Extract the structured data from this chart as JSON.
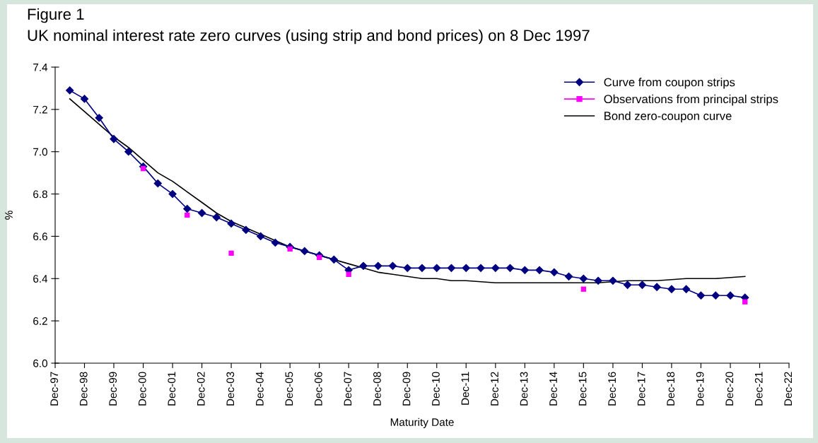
{
  "chart_data": {
    "type": "line",
    "title": "Figure 1",
    "subtitle": "UK nominal interest rate zero curves (using strip and bond prices) on 8 Dec 1997",
    "xlabel": "Maturity Date",
    "ylabel": "%",
    "series": [
      {
        "name": "Curve from coupon strips",
        "color": "#000080",
        "marker": "diamond",
        "line_style": "solid",
        "x": [
          "1998-06",
          "1998-12",
          "1999-06",
          "1999-12",
          "2000-06",
          "2000-12",
          "2001-06",
          "2001-12",
          "2002-06",
          "2002-12",
          "2003-06",
          "2003-12",
          "2004-06",
          "2004-12",
          "2005-06",
          "2005-12",
          "2006-06",
          "2006-12",
          "2007-06",
          "2007-12",
          "2008-06",
          "2008-12",
          "2009-06",
          "2009-12",
          "2010-06",
          "2010-12",
          "2011-06",
          "2011-12",
          "2012-06",
          "2012-12",
          "2013-06",
          "2013-12",
          "2014-06",
          "2014-12",
          "2015-06",
          "2015-12",
          "2016-06",
          "2016-12",
          "2017-06",
          "2017-12",
          "2018-06",
          "2018-12",
          "2019-06",
          "2019-12",
          "2020-06",
          "2020-12",
          "2021-06"
        ],
        "values": [
          7.29,
          7.25,
          7.16,
          7.06,
          7.0,
          6.93,
          6.85,
          6.8,
          6.73,
          6.71,
          6.69,
          6.66,
          6.63,
          6.6,
          6.57,
          6.55,
          6.53,
          6.51,
          6.49,
          6.44,
          6.46,
          6.46,
          6.46,
          6.45,
          6.45,
          6.45,
          6.45,
          6.45,
          6.45,
          6.45,
          6.45,
          6.44,
          6.44,
          6.43,
          6.41,
          6.4,
          6.39,
          6.39,
          6.37,
          6.37,
          6.36,
          6.35,
          6.35,
          6.32,
          6.32,
          6.32,
          6.31
        ]
      },
      {
        "name": "Observations from principal strips",
        "type": "scatter",
        "color": "#ff00ff",
        "marker": "square",
        "x": [
          "2000-12",
          "2002-06",
          "2003-12",
          "2005-12",
          "2006-12",
          "2007-12",
          "2015-12",
          "2021-06"
        ],
        "values": [
          6.92,
          6.7,
          6.52,
          6.54,
          6.5,
          6.42,
          6.35,
          6.29
        ]
      },
      {
        "name": "Bond zero-coupon curve",
        "color": "#000000",
        "marker": "none",
        "line_style": "solid",
        "x": [
          "1998-06",
          "1998-12",
          "1999-06",
          "1999-12",
          "2000-06",
          "2000-12",
          "2001-06",
          "2001-12",
          "2002-06",
          "2002-12",
          "2003-06",
          "2003-12",
          "2004-06",
          "2004-12",
          "2005-06",
          "2005-12",
          "2006-06",
          "2006-12",
          "2007-06",
          "2007-12",
          "2008-06",
          "2008-12",
          "2009-06",
          "2009-12",
          "2010-06",
          "2010-12",
          "2011-06",
          "2011-12",
          "2012-12",
          "2013-12",
          "2014-12",
          "2015-12",
          "2016-06",
          "2017-06",
          "2018-06",
          "2019-06",
          "2020-06",
          "2021-06"
        ],
        "values": [
          7.25,
          7.19,
          7.13,
          7.07,
          7.02,
          6.96,
          6.9,
          6.86,
          6.81,
          6.76,
          6.71,
          6.67,
          6.64,
          6.61,
          6.58,
          6.55,
          6.53,
          6.51,
          6.49,
          6.47,
          6.45,
          6.43,
          6.42,
          6.41,
          6.4,
          6.4,
          6.39,
          6.39,
          6.38,
          6.38,
          6.38,
          6.38,
          6.38,
          6.39,
          6.39,
          6.4,
          6.4,
          6.41
        ]
      }
    ],
    "xlim": [
      "1997-12",
      "2022-12"
    ],
    "xticks": [
      {
        "value": "1997-12",
        "label": "Dec-97"
      },
      {
        "value": "1998-12",
        "label": "Dec-98"
      },
      {
        "value": "1999-12",
        "label": "Dec-99"
      },
      {
        "value": "2000-12",
        "label": "Dec-00"
      },
      {
        "value": "2001-12",
        "label": "Dec-01"
      },
      {
        "value": "2002-12",
        "label": "Dec-02"
      },
      {
        "value": "2003-12",
        "label": "Dec-03"
      },
      {
        "value": "2004-12",
        "label": "Dec-04"
      },
      {
        "value": "2005-12",
        "label": "Dec-05"
      },
      {
        "value": "2006-12",
        "label": "Dec-06"
      },
      {
        "value": "2007-12",
        "label": "Dec-07"
      },
      {
        "value": "2008-12",
        "label": "Dec-08"
      },
      {
        "value": "2009-12",
        "label": "Dec-09"
      },
      {
        "value": "2010-12",
        "label": "Dec-10"
      },
      {
        "value": "2011-12",
        "label": "Dec-11"
      },
      {
        "value": "2012-12",
        "label": "Dec-12"
      },
      {
        "value": "2013-12",
        "label": "Dec-13"
      },
      {
        "value": "2014-12",
        "label": "Dec-14"
      },
      {
        "value": "2015-12",
        "label": "Dec-15"
      },
      {
        "value": "2016-12",
        "label": "Dec-16"
      },
      {
        "value": "2017-12",
        "label": "Dec-17"
      },
      {
        "value": "2018-12",
        "label": "Dec-18"
      },
      {
        "value": "2019-12",
        "label": "Dec-19"
      },
      {
        "value": "2020-12",
        "label": "Dec-20"
      },
      {
        "value": "2021-12",
        "label": "Dec-21"
      },
      {
        "value": "2022-12",
        "label": "Dec-22"
      }
    ],
    "ylim": [
      6.0,
      7.4
    ],
    "yticks": [
      {
        "value": 6.0,
        "label": "6.0"
      },
      {
        "value": 6.2,
        "label": "6.2"
      },
      {
        "value": 6.4,
        "label": "6.4"
      },
      {
        "value": 6.6,
        "label": "6.6"
      },
      {
        "value": 6.8,
        "label": "6.8"
      },
      {
        "value": 7.0,
        "label": "7.0"
      },
      {
        "value": 7.2,
        "label": "7.2"
      },
      {
        "value": 7.4,
        "label": "7.4"
      }
    ],
    "grid": false,
    "legend": "top right"
  }
}
